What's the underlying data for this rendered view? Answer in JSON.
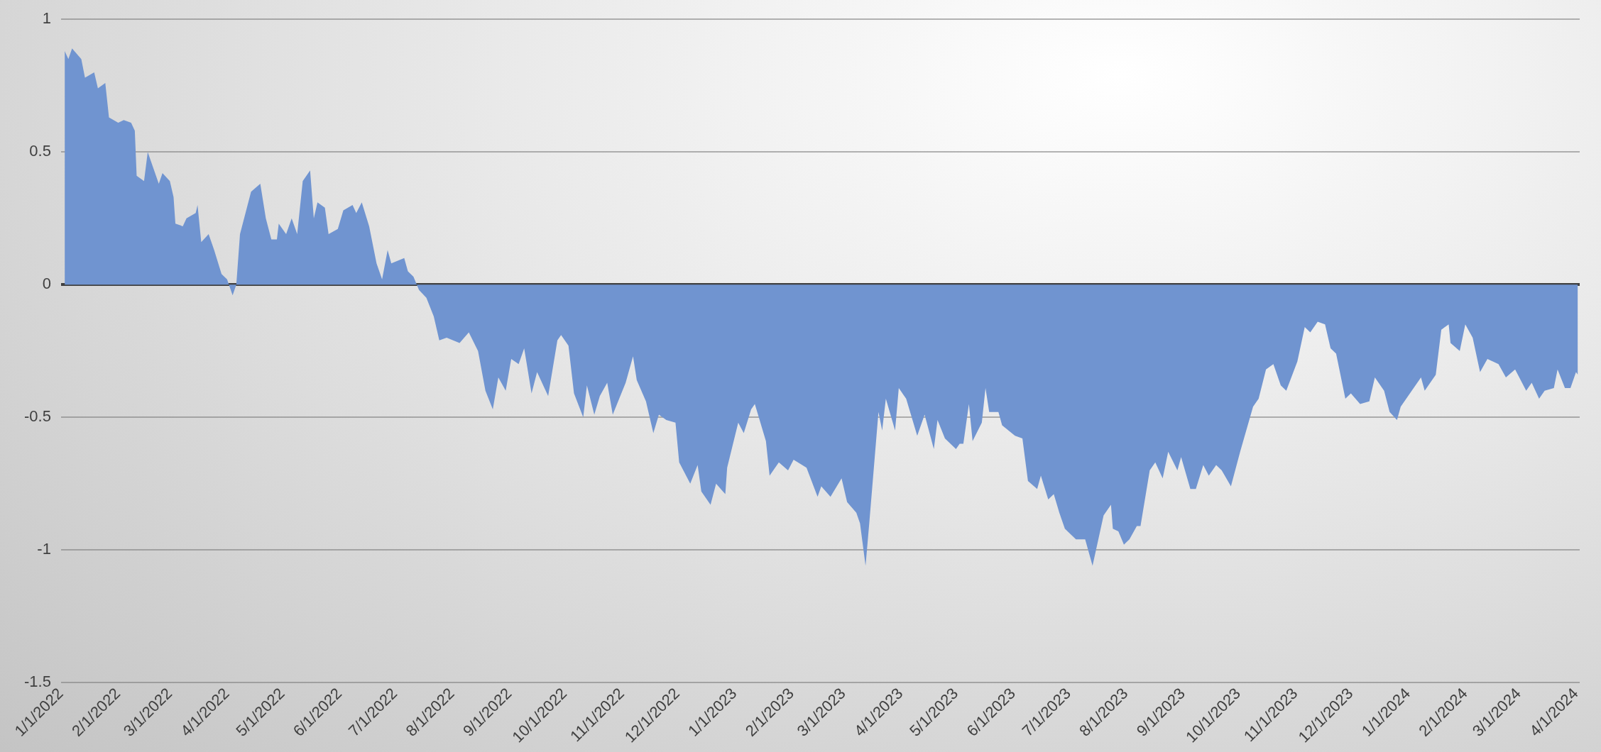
{
  "chart_data": {
    "type": "area",
    "grid": "y",
    "ylim": [
      -1.5,
      1
    ],
    "yticks": [
      -1.5,
      -1,
      -0.5,
      0,
      0.5,
      1
    ],
    "xlim": [
      "2022-01-01",
      "2024-04-03"
    ],
    "xticks": [
      {
        "value": "2022-01-01",
        "label": "1/1/2022"
      },
      {
        "value": "2022-02-01",
        "label": "2/1/2022"
      },
      {
        "value": "2022-03-01",
        "label": "3/1/2022"
      },
      {
        "value": "2022-04-01",
        "label": "4/1/2022"
      },
      {
        "value": "2022-05-01",
        "label": "5/1/2022"
      },
      {
        "value": "2022-06-01",
        "label": "6/1/2022"
      },
      {
        "value": "2022-07-01",
        "label": "7/1/2022"
      },
      {
        "value": "2022-08-01",
        "label": "8/1/2022"
      },
      {
        "value": "2022-09-01",
        "label": "9/1/2022"
      },
      {
        "value": "2022-10-01",
        "label": "10/1/2022"
      },
      {
        "value": "2022-11-01",
        "label": "11/1/2022"
      },
      {
        "value": "2022-12-01",
        "label": "12/1/2022"
      },
      {
        "value": "2023-01-01",
        "label": "1/1/2023"
      },
      {
        "value": "2023-02-01",
        "label": "2/1/2023"
      },
      {
        "value": "2023-03-01",
        "label": "3/1/2023"
      },
      {
        "value": "2023-04-01",
        "label": "4/1/2023"
      },
      {
        "value": "2023-05-01",
        "label": "5/1/2023"
      },
      {
        "value": "2023-06-01",
        "label": "6/1/2023"
      },
      {
        "value": "2023-07-01",
        "label": "7/1/2023"
      },
      {
        "value": "2023-08-01",
        "label": "8/1/2023"
      },
      {
        "value": "2023-09-01",
        "label": "9/1/2023"
      },
      {
        "value": "2023-10-01",
        "label": "10/1/2023"
      },
      {
        "value": "2023-11-01",
        "label": "11/1/2023"
      },
      {
        "value": "2023-12-01",
        "label": "12/1/2023"
      },
      {
        "value": "2024-01-01",
        "label": "1/1/2024"
      },
      {
        "value": "2024-02-01",
        "label": "2/1/2024"
      },
      {
        "value": "2024-03-01",
        "label": "3/1/2024"
      },
      {
        "value": "2024-04-01",
        "label": "4/1/2024"
      }
    ],
    "series": [
      {
        "color": "#7094d0",
        "x": [
          "2022-01-03",
          "2022-01-05",
          "2022-01-07",
          "2022-01-12",
          "2022-01-14",
          "2022-01-19",
          "2022-01-21",
          "2022-01-25",
          "2022-01-27",
          "2022-02-01",
          "2022-02-04",
          "2022-02-08",
          "2022-02-10",
          "2022-02-11",
          "2022-02-15",
          "2022-02-17",
          "2022-02-23",
          "2022-02-25",
          "2022-03-01",
          "2022-03-03",
          "2022-03-04",
          "2022-03-08",
          "2022-03-10",
          "2022-03-15",
          "2022-03-16",
          "2022-03-18",
          "2022-03-22",
          "2022-03-25",
          "2022-03-29",
          "2022-04-01",
          "2022-04-04",
          "2022-04-06",
          "2022-04-08",
          "2022-04-14",
          "2022-04-19",
          "2022-04-22",
          "2022-04-25",
          "2022-04-28",
          "2022-04-29",
          "2022-05-03",
          "2022-05-06",
          "2022-05-09",
          "2022-05-12",
          "2022-05-16",
          "2022-05-18",
          "2022-05-20",
          "2022-05-24",
          "2022-05-26",
          "2022-05-31",
          "2022-06-03",
          "2022-06-08",
          "2022-06-10",
          "2022-06-13",
          "2022-06-17",
          "2022-06-21",
          "2022-06-24",
          "2022-06-27",
          "2022-06-29",
          "2022-07-06",
          "2022-07-08",
          "2022-07-11",
          "2022-07-14",
          "2022-07-18",
          "2022-07-22",
          "2022-07-25",
          "2022-07-29",
          "2022-08-05",
          "2022-08-10",
          "2022-08-15",
          "2022-08-19",
          "2022-08-23",
          "2022-08-26",
          "2022-08-30",
          "2022-09-02",
          "2022-09-06",
          "2022-09-09",
          "2022-09-13",
          "2022-09-16",
          "2022-09-22",
          "2022-09-27",
          "2022-09-29",
          "2022-10-03",
          "2022-10-06",
          "2022-10-11",
          "2022-10-13",
          "2022-10-17",
          "2022-10-20",
          "2022-10-24",
          "2022-10-27",
          "2022-11-03",
          "2022-11-07",
          "2022-11-09",
          "2022-11-14",
          "2022-11-18",
          "2022-11-21",
          "2022-11-25",
          "2022-11-30",
          "2022-12-02",
          "2022-12-08",
          "2022-12-12",
          "2022-12-14",
          "2022-12-19",
          "2022-12-22",
          "2022-12-27",
          "2022-12-28",
          "2023-01-03",
          "2023-01-06",
          "2023-01-10",
          "2023-01-12",
          "2023-01-18",
          "2023-01-20",
          "2023-01-25",
          "2023-01-30",
          "2023-02-02",
          "2023-02-09",
          "2023-02-15",
          "2023-02-17",
          "2023-02-22",
          "2023-02-28",
          "2023-03-03",
          "2023-03-08",
          "2023-03-10",
          "2023-03-13",
          "2023-03-15",
          "2023-03-20",
          "2023-03-22",
          "2023-03-24",
          "2023-03-29",
          "2023-03-31",
          "2023-04-04",
          "2023-04-10",
          "2023-04-14",
          "2023-04-19",
          "2023-04-21",
          "2023-04-25",
          "2023-05-01",
          "2023-05-03",
          "2023-05-05",
          "2023-05-08",
          "2023-05-10",
          "2023-05-15",
          "2023-05-17",
          "2023-05-19",
          "2023-05-24",
          "2023-05-26",
          "2023-06-02",
          "2023-06-06",
          "2023-06-09",
          "2023-06-14",
          "2023-06-16",
          "2023-06-20",
          "2023-06-23",
          "2023-06-26",
          "2023-06-29",
          "2023-07-05",
          "2023-07-10",
          "2023-07-14",
          "2023-07-20",
          "2023-07-24",
          "2023-07-25",
          "2023-07-28",
          "2023-07-31",
          "2023-08-03",
          "2023-08-07",
          "2023-08-09",
          "2023-08-14",
          "2023-08-17",
          "2023-08-21",
          "2023-08-24",
          "2023-08-29",
          "2023-08-31",
          "2023-09-05",
          "2023-09-08",
          "2023-09-12",
          "2023-09-15",
          "2023-09-19",
          "2023-09-22",
          "2023-09-27",
          "2023-10-02",
          "2023-10-09",
          "2023-10-12",
          "2023-10-16",
          "2023-10-20",
          "2023-10-24",
          "2023-10-27",
          "2023-11-02",
          "2023-11-06",
          "2023-11-09",
          "2023-11-13",
          "2023-11-17",
          "2023-11-20",
          "2023-11-23",
          "2023-11-28",
          "2023-12-01",
          "2023-12-06",
          "2023-12-11",
          "2023-12-14",
          "2023-12-19",
          "2023-12-22",
          "2023-12-26",
          "2023-12-28",
          "2024-01-03",
          "2024-01-08",
          "2024-01-10",
          "2024-01-16",
          "2024-01-19",
          "2024-01-23",
          "2024-01-24",
          "2024-01-29",
          "2024-02-01",
          "2024-02-05",
          "2024-02-09",
          "2024-02-13",
          "2024-02-19",
          "2024-02-23",
          "2024-02-28",
          "2024-03-05",
          "2024-03-08",
          "2024-03-12",
          "2024-03-15",
          "2024-03-20",
          "2024-03-22",
          "2024-03-26",
          "2024-03-29",
          "2024-04-01",
          "2024-04-02"
        ],
        "values": [
          0.88,
          0.85,
          0.89,
          0.85,
          0.78,
          0.8,
          0.74,
          0.76,
          0.63,
          0.61,
          0.62,
          0.61,
          0.58,
          0.41,
          0.39,
          0.5,
          0.38,
          0.42,
          0.39,
          0.33,
          0.23,
          0.22,
          0.25,
          0.27,
          0.3,
          0.16,
          0.19,
          0.13,
          0.04,
          0.02,
          -0.04,
          0.0,
          0.19,
          0.35,
          0.38,
          0.25,
          0.17,
          0.17,
          0.23,
          0.19,
          0.25,
          0.19,
          0.39,
          0.43,
          0.25,
          0.31,
          0.29,
          0.19,
          0.21,
          0.28,
          0.3,
          0.27,
          0.31,
          0.22,
          0.08,
          0.02,
          0.13,
          0.08,
          0.1,
          0.05,
          0.03,
          -0.02,
          -0.05,
          -0.12,
          -0.21,
          -0.2,
          -0.22,
          -0.18,
          -0.25,
          -0.4,
          -0.47,
          -0.35,
          -0.4,
          -0.28,
          -0.3,
          -0.24,
          -0.41,
          -0.33,
          -0.42,
          -0.21,
          -0.19,
          -0.23,
          -0.41,
          -0.5,
          -0.38,
          -0.49,
          -0.42,
          -0.37,
          -0.49,
          -0.37,
          -0.27,
          -0.36,
          -0.44,
          -0.56,
          -0.49,
          -0.51,
          -0.52,
          -0.67,
          -0.75,
          -0.68,
          -0.78,
          -0.83,
          -0.75,
          -0.79,
          -0.69,
          -0.52,
          -0.56,
          -0.47,
          -0.45,
          -0.59,
          -0.72,
          -0.67,
          -0.7,
          -0.66,
          -0.69,
          -0.8,
          -0.76,
          -0.8,
          -0.73,
          -0.82,
          -0.86,
          -0.9,
          -1.06,
          -0.9,
          -0.48,
          -0.55,
          -0.43,
          -0.55,
          -0.39,
          -0.43,
          -0.57,
          -0.49,
          -0.62,
          -0.51,
          -0.58,
          -0.62,
          -0.6,
          -0.6,
          -0.45,
          -0.59,
          -0.52,
          -0.39,
          -0.48,
          -0.48,
          -0.53,
          -0.57,
          -0.58,
          -0.74,
          -0.77,
          -0.72,
          -0.81,
          -0.79,
          -0.86,
          -0.92,
          -0.96,
          -0.96,
          -1.06,
          -0.87,
          -0.83,
          -0.92,
          -0.93,
          -0.98,
          -0.96,
          -0.91,
          -0.91,
          -0.7,
          -0.67,
          -0.73,
          -0.63,
          -0.7,
          -0.65,
          -0.77,
          -0.77,
          -0.68,
          -0.72,
          -0.68,
          -0.7,
          -0.76,
          -0.63,
          -0.46,
          -0.43,
          -0.32,
          -0.3,
          -0.38,
          -0.4,
          -0.29,
          -0.16,
          -0.18,
          -0.14,
          -0.15,
          -0.24,
          -0.26,
          -0.43,
          -0.41,
          -0.45,
          -0.44,
          -0.35,
          -0.4,
          -0.48,
          -0.51,
          -0.46,
          -0.4,
          -0.35,
          -0.4,
          -0.34,
          -0.17,
          -0.15,
          -0.22,
          -0.25,
          -0.15,
          -0.2,
          -0.33,
          -0.28,
          -0.3,
          -0.35,
          -0.32,
          -0.4,
          -0.37,
          -0.43,
          -0.4,
          -0.39,
          -0.32,
          -0.39,
          -0.39,
          -0.33,
          -0.34
        ]
      }
    ]
  }
}
